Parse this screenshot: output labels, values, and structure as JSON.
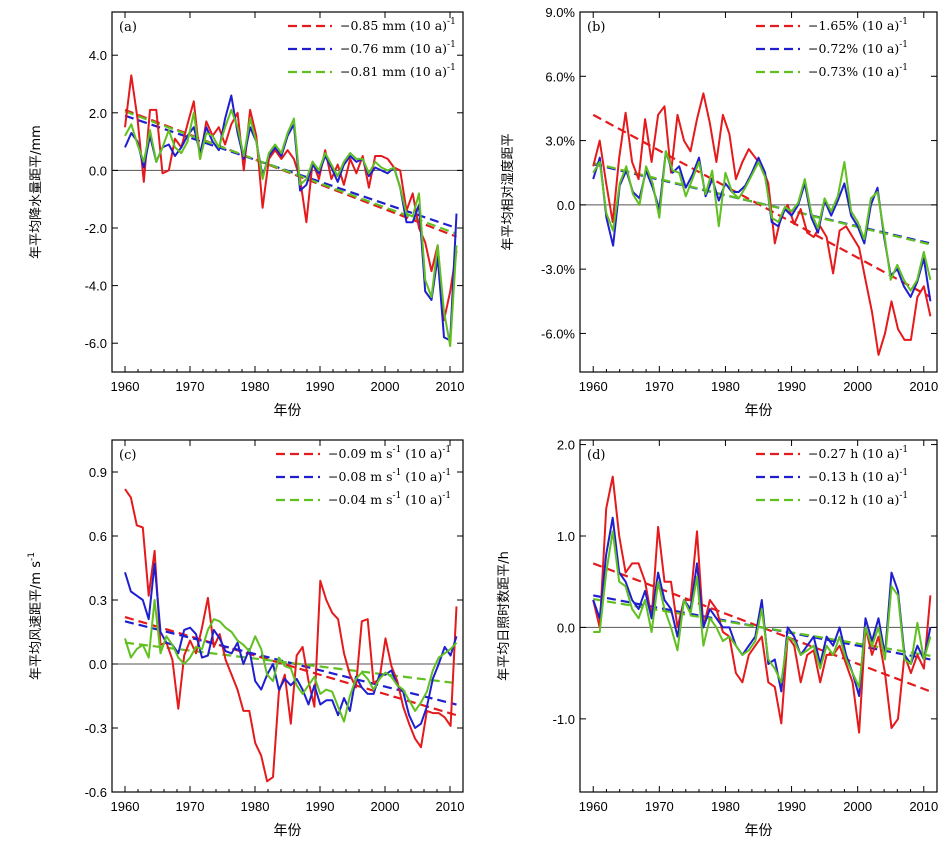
{
  "chart_data": [
    {
      "id": "a",
      "type": "line",
      "panel_label": "(a)",
      "ylabel": "年平均降水量距平/mm",
      "xlabel": "年份",
      "xlim": [
        1958,
        2012
      ],
      "ylim": [
        -7,
        5.5
      ],
      "xticks": [
        1960,
        1970,
        1980,
        1990,
        2000,
        2010
      ],
      "xtick_labels": [
        "1960",
        "1970",
        "1980",
        "1990",
        "2000",
        "2010"
      ],
      "yticks": [
        -6,
        -4,
        -2,
        0,
        2,
        4
      ],
      "ytick_labels": [
        "-6.0",
        "-4.0",
        "-2.0",
        "0.0",
        "2.0",
        "4.0"
      ],
      "series": [
        {
          "color": "#e41a1c",
          "values": [
            1.5,
            3.3,
            1.8,
            -0.4,
            2.1,
            2.1,
            -0.1,
            0.0,
            1.1,
            0.8,
            1.6,
            2.4,
            0.4,
            1.7,
            1.2,
            1.5,
            0.9,
            1.6,
            2.0,
            0.0,
            2.1,
            1.2,
            -1.3,
            0.4,
            0.7,
            0.4,
            0.7,
            0.4,
            -0.3,
            -1.8,
            0.3,
            -0.3,
            0.7,
            -0.3,
            0.2,
            -0.5,
            0.4,
            -0.1,
            0.5,
            -0.6,
            0.5,
            0.5,
            0.4,
            0.1,
            0.0,
            -1.4,
            -0.8,
            -2.0,
            -2.5,
            -3.5,
            -2.6,
            -5.2,
            -4.2,
            -2.8
          ]
        },
        {
          "color": "#1f1fd0",
          "values": [
            0.8,
            1.3,
            1.0,
            0.1,
            1.2,
            0.3,
            0.8,
            0.9,
            0.5,
            0.8,
            1.2,
            1.5,
            0.6,
            1.5,
            1.0,
            0.7,
            1.8,
            2.6,
            1.3,
            0.4,
            1.5,
            1.0,
            -0.2,
            0.5,
            0.8,
            0.5,
            1.2,
            1.6,
            -0.7,
            -0.5,
            0.2,
            -0.1,
            0.5,
            0.1,
            -0.4,
            0.2,
            0.5,
            0.3,
            0.4,
            -0.2,
            0.1,
            0.0,
            -0.1,
            0.1,
            -0.6,
            -1.8,
            -1.8,
            -1.2,
            -4.2,
            -4.5,
            -3.0,
            -5.8,
            -5.9,
            -1.5
          ]
        },
        {
          "color": "#60c020",
          "values": [
            1.2,
            1.6,
            0.9,
            0.3,
            1.4,
            0.3,
            0.8,
            1.4,
            0.8,
            0.6,
            1.0,
            2.0,
            0.4,
            1.3,
            1.2,
            0.8,
            1.5,
            2.1,
            1.5,
            0.5,
            1.8,
            1.0,
            -0.3,
            0.6,
            0.9,
            0.6,
            1.3,
            1.8,
            -0.5,
            -0.3,
            0.3,
            0.0,
            0.6,
            0.2,
            -0.2,
            0.3,
            0.6,
            0.4,
            0.4,
            -0.1,
            0.3,
            0.1,
            0.0,
            0.1,
            -0.6,
            -1.5,
            -1.6,
            -0.8,
            -3.8,
            -4.4,
            -2.6,
            -4.9,
            -6.1,
            -2.6
          ]
        }
      ],
      "trends": [
        {
          "color": "#e41a1c",
          "y0": 2.1,
          "y1": -2.3
        },
        {
          "color": "#1f1fd0",
          "y0": 1.9,
          "y1": -2.0
        },
        {
          "color": "#60c020",
          "y0": 2.05,
          "y1": -2.2
        }
      ],
      "legend": [
        {
          "color": "#e41a1c",
          "text": "−0.85 mm (10 a)",
          "sup": "-1"
        },
        {
          "color": "#1f1fd0",
          "text": "−0.76 mm (10 a)",
          "sup": "-1"
        },
        {
          "color": "#60c020",
          "text": "−0.81 mm (10 a)",
          "sup": "-1"
        }
      ]
    },
    {
      "id": "b",
      "type": "line",
      "panel_label": "(b)",
      "ylabel": "年平均相对湿度距平",
      "xlabel": "年份",
      "xlim": [
        1958,
        2012
      ],
      "ylim": [
        -7.8,
        9.0
      ],
      "xticks": [
        1960,
        1970,
        1980,
        1990,
        2000,
        2010
      ],
      "xtick_labels": [
        "1960",
        "1970",
        "1980",
        "1990",
        "2000",
        "2010"
      ],
      "yticks": [
        -6,
        -3,
        0,
        3,
        6,
        9
      ],
      "ytick_labels": [
        "-6.0%",
        "-3.0%",
        "0.0",
        "3.0%",
        "6.0%",
        "9.0%"
      ],
      "series": [
        {
          "color": "#e41a1c",
          "values": [
            1.8,
            3.0,
            1.0,
            -0.8,
            2.2,
            4.3,
            2.0,
            1.2,
            4.0,
            2.0,
            4.2,
            4.6,
            1.5,
            4.2,
            3.0,
            2.5,
            4.0,
            5.2,
            3.8,
            2.0,
            4.2,
            3.3,
            1.2,
            2.0,
            2.6,
            2.2,
            1.8,
            1.0,
            -1.8,
            -0.5,
            0.0,
            -0.9,
            -0.2,
            -1.3,
            -1.5,
            -1.0,
            -1.5,
            -3.2,
            -1.2,
            -1.0,
            -1.5,
            -2.0,
            -3.5,
            -5.0,
            -7.0,
            -6.0,
            -4.5,
            -5.8,
            -6.3,
            -6.3,
            -4.3,
            -3.8,
            -5.2
          ]
        },
        {
          "color": "#1f1fd0",
          "values": [
            1.2,
            2.2,
            -0.6,
            -1.9,
            0.9,
            1.6,
            0.6,
            0.3,
            1.6,
            0.8,
            -0.2,
            2.5,
            1.5,
            1.8,
            0.8,
            1.4,
            2.2,
            0.4,
            1.2,
            0.2,
            1.0,
            0.6,
            0.6,
            0.9,
            1.5,
            2.2,
            1.5,
            -0.8,
            -1.0,
            -0.2,
            -0.5,
            0.0,
            1.0,
            -0.6,
            -1.3,
            0.2,
            -0.5,
            0.2,
            1.0,
            -0.5,
            -1.0,
            -1.8,
            0.0,
            0.8,
            -1.5,
            -3.3,
            -3.0,
            -3.8,
            -4.3,
            -3.6,
            -2.5,
            -4.5
          ]
        },
        {
          "color": "#60c020",
          "values": [
            1.5,
            2.0,
            -0.4,
            -1.2,
            1.0,
            1.8,
            0.5,
            0.0,
            1.8,
            1.0,
            -0.6,
            2.5,
            1.6,
            1.5,
            0.4,
            1.2,
            2.0,
            0.5,
            1.6,
            -1.0,
            1.5,
            0.6,
            0.3,
            0.8,
            1.4,
            2.0,
            1.3,
            -0.6,
            -0.8,
            -0.1,
            -0.3,
            0.1,
            1.2,
            -0.4,
            -1.1,
            0.3,
            -0.3,
            0.4,
            2.0,
            -0.3,
            -0.8,
            -1.6,
            0.3,
            0.6,
            -1.3,
            -3.5,
            -2.8,
            -3.5,
            -4.0,
            -3.5,
            -2.2,
            -3.5
          ]
        }
      ],
      "trends": [
        {
          "color": "#e41a1c",
          "y0": 4.2,
          "y1": -4.3
        },
        {
          "color": "#1f1fd0",
          "y0": 1.9,
          "y1": -1.8
        },
        {
          "color": "#60c020",
          "y0": 1.95,
          "y1": -1.85
        }
      ],
      "legend": [
        {
          "color": "#e41a1c",
          "text": "−1.65%  (10 a)",
          "sup": "-1"
        },
        {
          "color": "#1f1fd0",
          "text": "−0.72%  (10 a)",
          "sup": "-1"
        },
        {
          "color": "#60c020",
          "text": "−0.73%  (10 a)",
          "sup": "-1"
        }
      ]
    },
    {
      "id": "c",
      "type": "line",
      "panel_label": "(c)",
      "ylabel": "年平均风速距平/m s",
      "ylabel_sup": "-1",
      "xlabel": "年份",
      "xlim": [
        1958,
        2012
      ],
      "ylim": [
        -0.6,
        1.05
      ],
      "xticks": [
        1960,
        1970,
        1980,
        1990,
        2000,
        2010
      ],
      "xtick_labels": [
        "1960",
        "1970",
        "1980",
        "1990",
        "2000",
        "2010"
      ],
      "yticks": [
        -0.6,
        -0.3,
        0.0,
        0.3,
        0.6,
        0.9
      ],
      "ytick_labels": [
        "-0.6",
        "-0.3",
        "0.0",
        "0.3",
        "0.6",
        "0.9"
      ],
      "series": [
        {
          "color": "#e41a1c",
          "values": [
            0.82,
            0.78,
            0.65,
            0.64,
            0.32,
            0.53,
            0.09,
            0.1,
            0.02,
            -0.21,
            0.04,
            0.11,
            0.05,
            0.17,
            0.31,
            0.08,
            0.14,
            0.02,
            -0.05,
            -0.12,
            -0.22,
            -0.22,
            -0.37,
            -0.43,
            -0.55,
            -0.53,
            -0.13,
            -0.05,
            -0.28,
            0.04,
            0.08,
            -0.08,
            -0.2,
            0.39,
            0.3,
            0.24,
            0.21,
            0.05,
            -0.05,
            -0.11,
            0.2,
            0.21,
            -0.09,
            -0.07,
            0.12,
            -0.01,
            -0.08,
            -0.2,
            -0.28,
            -0.35,
            -0.39,
            -0.22,
            -0.23,
            -0.23,
            -0.25,
            -0.29,
            0.27
          ]
        },
        {
          "color": "#1f1fd0",
          "values": [
            0.43,
            0.34,
            0.32,
            0.3,
            0.21,
            0.47,
            0.15,
            0.1,
            0.09,
            0.05,
            0.16,
            0.17,
            0.14,
            0.03,
            0.04,
            0.16,
            0.12,
            0.06,
            0.05,
            0.1,
            0.0,
            0.07,
            -0.08,
            -0.12,
            -0.05,
            0.0,
            -0.12,
            -0.07,
            -0.1,
            -0.07,
            -0.12,
            -0.19,
            -0.1,
            -0.19,
            -0.17,
            -0.17,
            -0.24,
            -0.16,
            -0.22,
            -0.06,
            -0.11,
            -0.14,
            -0.14,
            -0.05,
            -0.05,
            -0.03,
            -0.1,
            -0.13,
            -0.24,
            -0.3,
            -0.28,
            -0.2,
            -0.07,
            0.0,
            0.08,
            0.04,
            0.13
          ]
        },
        {
          "color": "#60c020",
          "values": [
            0.12,
            0.03,
            0.07,
            0.09,
            0.03,
            0.3,
            0.05,
            0.13,
            0.09,
            0.03,
            0.0,
            0.03,
            0.08,
            0.07,
            0.16,
            0.21,
            0.2,
            0.17,
            0.15,
            0.11,
            0.09,
            0.06,
            0.13,
            0.07,
            -0.05,
            -0.08,
            0.03,
            -0.01,
            -0.02,
            -0.1,
            -0.14,
            -0.1,
            -0.06,
            -0.14,
            -0.12,
            -0.13,
            -0.2,
            -0.27,
            -0.15,
            -0.07,
            -0.04,
            -0.07,
            -0.12,
            -0.07,
            -0.04,
            -0.06,
            -0.1,
            -0.12,
            -0.17,
            -0.22,
            -0.18,
            -0.13,
            -0.03,
            0.03,
            0.05,
            0.07,
            0.1
          ]
        }
      ],
      "trends": [
        {
          "color": "#e41a1c",
          "y0": 0.22,
          "y1": -0.24
        },
        {
          "color": "#1f1fd0",
          "y0": 0.2,
          "y1": -0.19
        },
        {
          "color": "#60c020",
          "y0": 0.1,
          "y1": -0.09
        }
      ],
      "legend": [
        {
          "color": "#e41a1c",
          "text": "−0.09 m s",
          "sup": "-1",
          "text2": " (10 a)",
          "sup2": "-1"
        },
        {
          "color": "#1f1fd0",
          "text": "−0.08 m s",
          "sup": "-1",
          "text2": " (10 a)",
          "sup2": "-1"
        },
        {
          "color": "#60c020",
          "text": "−0.04 m s",
          "sup": "-1",
          "text2": " (10 a)",
          "sup2": "-1"
        }
      ]
    },
    {
      "id": "d",
      "type": "line",
      "panel_label": "(d)",
      "ylabel": "年平均日照时数距平/h",
      "xlabel": "年份",
      "xlim": [
        1958,
        2012
      ],
      "ylim": [
        -1.8,
        2.05
      ],
      "xticks": [
        1960,
        1970,
        1980,
        1990,
        2000,
        2010
      ],
      "xtick_labels": [
        "1960",
        "1970",
        "1980",
        "1990",
        "2000",
        "2010"
      ],
      "yticks": [
        -1.0,
        0.0,
        1.0,
        2.0
      ],
      "ytick_labels": [
        "-1.0",
        "0.0",
        "1.0",
        "2.0"
      ],
      "series": [
        {
          "color": "#e41a1c",
          "values": [
            0.3,
            0.0,
            1.3,
            1.65,
            1.0,
            0.6,
            0.7,
            0.7,
            0.5,
            0.1,
            1.1,
            0.5,
            0.5,
            0.0,
            0.3,
            0.3,
            1.05,
            0.0,
            0.3,
            0.2,
            -0.05,
            -0.1,
            -0.5,
            -0.6,
            -0.3,
            -0.2,
            -0.1,
            -0.6,
            -0.65,
            -1.05,
            -0.1,
            -0.2,
            -0.6,
            -0.3,
            -0.25,
            -0.6,
            -0.3,
            -0.3,
            -0.2,
            -0.4,
            -0.6,
            -1.15,
            0.0,
            -0.3,
            -0.1,
            -0.5,
            -1.1,
            -1.0,
            -0.3,
            -0.5,
            -0.3,
            -0.45,
            0.35
          ]
        },
        {
          "color": "#1f1fd0",
          "values": [
            0.3,
            0.1,
            0.8,
            1.2,
            0.6,
            0.5,
            0.3,
            0.2,
            0.4,
            0.1,
            0.6,
            0.3,
            0.2,
            -0.1,
            0.3,
            0.2,
            0.7,
            0.0,
            0.2,
            0.1,
            0.0,
            0.0,
            -0.2,
            -0.3,
            -0.2,
            -0.1,
            0.3,
            -0.4,
            -0.35,
            -0.7,
            0.0,
            -0.1,
            -0.3,
            -0.2,
            -0.1,
            -0.4,
            -0.1,
            -0.2,
            0.0,
            -0.3,
            -0.5,
            -0.75,
            0.1,
            -0.15,
            0.1,
            -0.3,
            0.6,
            0.4,
            -0.3,
            -0.4,
            -0.2,
            -0.35,
            0.0
          ]
        },
        {
          "color": "#60c020",
          "values": [
            -0.05,
            -0.05,
            0.6,
            1.05,
            0.5,
            0.45,
            0.2,
            0.1,
            0.3,
            -0.05,
            0.5,
            0.2,
            0.0,
            -0.25,
            0.3,
            0.15,
            0.55,
            -0.2,
            0.1,
            0.0,
            -0.15,
            -0.1,
            -0.2,
            -0.3,
            -0.25,
            -0.15,
            0.2,
            -0.35,
            -0.45,
            -0.6,
            -0.1,
            -0.15,
            -0.3,
            -0.25,
            -0.2,
            -0.45,
            -0.2,
            -0.3,
            -0.1,
            -0.35,
            -0.5,
            -0.65,
            0.0,
            -0.2,
            0.0,
            -0.35,
            0.45,
            0.35,
            -0.35,
            -0.4,
            0.05,
            -0.35,
            -0.1
          ]
        }
      ],
      "trends": [
        {
          "color": "#e41a1c",
          "y0": 0.7,
          "y1": -0.7
        },
        {
          "color": "#1f1fd0",
          "y0": 0.35,
          "y1": -0.35
        },
        {
          "color": "#60c020",
          "y0": 0.31,
          "y1": -0.31
        }
      ],
      "legend": [
        {
          "color": "#e41a1c",
          "text": "−0.27 h (10 a)",
          "sup": "-1"
        },
        {
          "color": "#1f1fd0",
          "text": "−0.13 h (10 a)",
          "sup": "-1"
        },
        {
          "color": "#60c020",
          "text": "−0.12 h (10 a)",
          "sup": "-1"
        }
      ]
    }
  ]
}
